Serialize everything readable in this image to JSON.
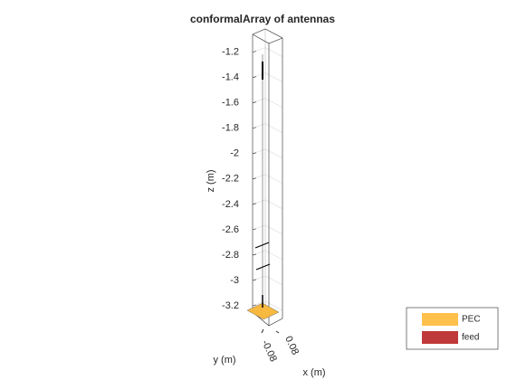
{
  "chart_data": {
    "type": "antenna-3d",
    "title": "conformalArray of antennas",
    "xlabel": "x (m)",
    "ylabel": "y (m)",
    "zlabel": "z (m)",
    "zlim": [
      -3.25,
      -1.06
    ],
    "zticks": [
      -1.2,
      -1.4,
      -1.6,
      -1.8,
      -2,
      -2.2,
      -2.4,
      -2.6,
      -2.8,
      -3,
      -3.2
    ],
    "xticks": [
      0.08
    ],
    "yticks": [
      -0.08
    ],
    "grid": true,
    "legend": {
      "location": "southeast",
      "entries": [
        {
          "name": "PEC",
          "color": "#ffc04c"
        },
        {
          "name": "feed",
          "color": "#c0393a"
        }
      ]
    }
  }
}
